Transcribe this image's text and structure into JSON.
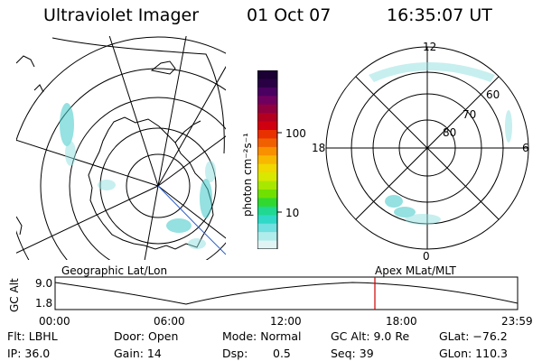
{
  "header": {
    "instrument": "Ultraviolet Imager",
    "date": "01 Oct 07",
    "time": "16:35:07 UT"
  },
  "colorbar": {
    "unit_label": "photon cm⁻²s⁻¹",
    "ticks": [
      "100",
      "10"
    ],
    "colors": [
      "#1a0033",
      "#2a0044",
      "#4a0060",
      "#700060",
      "#900040",
      "#b40020",
      "#d00010",
      "#e83000",
      "#f06000",
      "#f89000",
      "#f8b800",
      "#f0d800",
      "#d8e800",
      "#a8e800",
      "#70e000",
      "#30d830",
      "#20d890",
      "#30d8c8",
      "#70e0e0",
      "#b0ecec",
      "#e0f4f4"
    ]
  },
  "left_map": {
    "label": "Geographic Lat/Lon"
  },
  "right_map": {
    "label": "Apex MLat/MLT",
    "lat_labels": [
      "60",
      "70",
      "80"
    ],
    "mlt_labels": {
      "top": "12",
      "bottom": "0",
      "left": "18",
      "right": "6"
    }
  },
  "timeline": {
    "y_label": "GC Alt",
    "y_ticks": [
      "9.0",
      "1.8"
    ],
    "x_ticks": [
      "00:00",
      "06:00",
      "12:00",
      "18:00",
      "23:59"
    ],
    "marker_time": "16:35",
    "marker_color": "#cc0000"
  },
  "info": {
    "flt": "Flt: LBHL",
    "ip": "IP: 36.0",
    "door": "Door: Open",
    "gain": "Gain: 14",
    "mode": "Mode: Normal",
    "dsp_label": "Dsp:",
    "dsp_value": "0.5",
    "gc_alt": "GC Alt: 9.0 Re",
    "seq": "Seq: 39",
    "glat": "GLat: −76.2",
    "glon": "GLon: 110.3"
  }
}
